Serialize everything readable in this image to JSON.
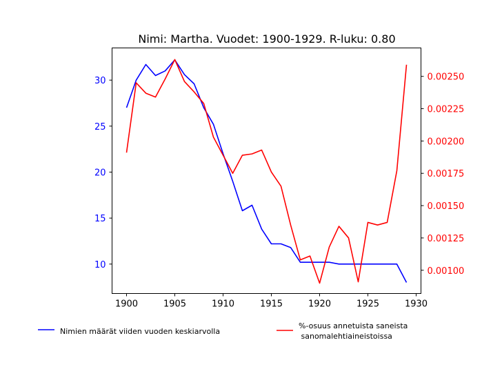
{
  "chart_data": {
    "type": "line",
    "title": "Nimi: Martha. Vuodet: 1900-1929. R-luku: 0.80",
    "x": [
      1900,
      1901,
      1902,
      1903,
      1904,
      1905,
      1906,
      1907,
      1908,
      1909,
      1910,
      1911,
      1912,
      1913,
      1914,
      1915,
      1916,
      1917,
      1918,
      1919,
      1920,
      1921,
      1922,
      1923,
      1924,
      1925,
      1926,
      1927,
      1928,
      1929
    ],
    "xlim": [
      1898.5,
      1930.5
    ],
    "xticks": [
      "1900",
      "1905",
      "1910",
      "1915",
      "1920",
      "1925",
      "1930"
    ],
    "grid": false,
    "legend_position": "bottom",
    "y_left": {
      "ylim": [
        6.8,
        33.5
      ],
      "ticks": [
        "10",
        "15",
        "20",
        "25",
        "30"
      ],
      "color": "#0000ff"
    },
    "y_right": {
      "ylim": [
        0.00082,
        0.00272
      ],
      "ticks": [
        "0.00100",
        "0.00125",
        "0.00150",
        "0.00175",
        "0.00200",
        "0.00225",
        "0.00250"
      ],
      "color": "#ff0000"
    },
    "series": [
      {
        "name": "Nimien määrät viiden vuoden keskiarvolla",
        "axis": "left",
        "color": "#0000ff",
        "values": [
          27.0,
          30.0,
          31.7,
          30.5,
          31.0,
          32.2,
          30.6,
          29.6,
          27.0,
          25.2,
          22.0,
          19.0,
          15.8,
          16.4,
          13.8,
          12.2,
          12.2,
          11.8,
          10.2,
          10.2,
          10.2,
          10.2,
          10.0,
          10.0,
          10.0,
          10.0,
          10.0,
          10.0,
          10.0,
          8.0
        ]
      },
      {
        "name": "%-osuus annetuista saneista\n sanomalehtiaineistoissa",
        "axis": "right",
        "color": "#ff0000",
        "values": [
          0.00191,
          0.00245,
          0.00237,
          0.00234,
          0.00248,
          0.00263,
          0.00246,
          0.00238,
          0.00229,
          0.00203,
          0.00189,
          0.00175,
          0.00189,
          0.0019,
          0.00193,
          0.00176,
          0.00165,
          0.00135,
          0.00108,
          0.00111,
          0.0009,
          0.00118,
          0.00134,
          0.00125,
          0.00091,
          0.00137,
          0.00135,
          0.00137,
          0.00177,
          0.00259
        ]
      }
    ]
  }
}
